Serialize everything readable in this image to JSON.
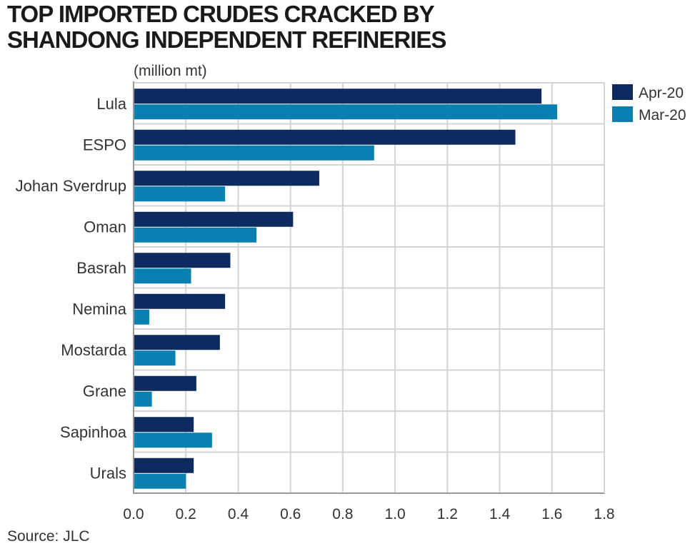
{
  "chart_data": {
    "type": "bar",
    "orientation": "horizontal",
    "title": "TOP IMPORTED CRUDES CRACKED BY SHANDONG INDEPENDENT REFINERIES",
    "unit_label": "(million mt)",
    "categories": [
      "Lula",
      "ESPO",
      "Johan Sverdrup",
      "Oman",
      "Basrah",
      "Nemina",
      "Mostarda",
      "Grane",
      "Sapinhoa",
      "Urals"
    ],
    "series": [
      {
        "name": "Apr-20",
        "color": "#0d2b5e",
        "values": [
          1.56,
          1.46,
          0.71,
          0.61,
          0.37,
          0.35,
          0.33,
          0.24,
          0.23,
          0.23
        ]
      },
      {
        "name": "Mar-20",
        "color": "#0a80b0",
        "values": [
          1.62,
          0.92,
          0.35,
          0.47,
          0.22,
          0.06,
          0.16,
          0.07,
          0.3,
          0.2
        ]
      }
    ],
    "xlim": [
      0,
      1.8
    ],
    "xticks": [
      "0.0",
      "0.2",
      "0.4",
      "0.6",
      "0.8",
      "1.0",
      "1.2",
      "1.4",
      "1.6",
      "1.8"
    ],
    "grid": true,
    "legend_position": "right",
    "source": "Source: JLC"
  }
}
